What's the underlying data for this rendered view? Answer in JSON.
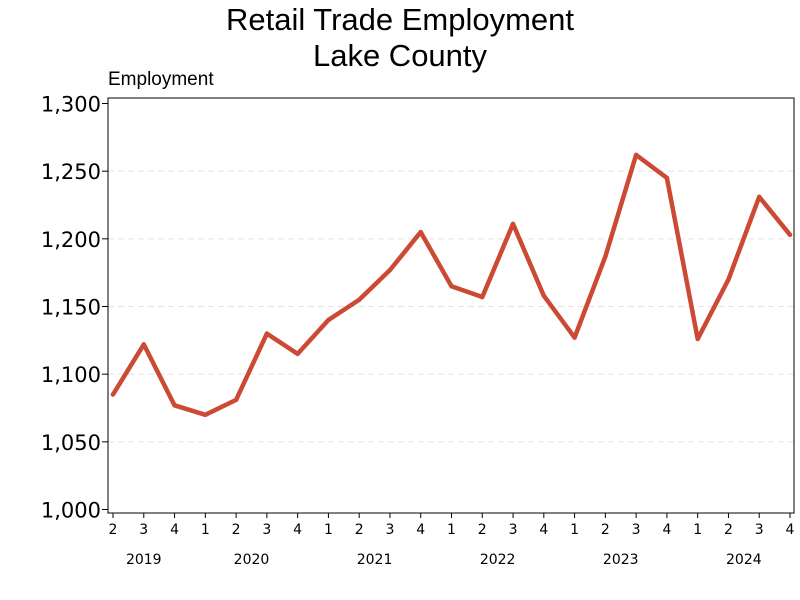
{
  "chart_data": {
    "type": "line",
    "title": [
      "Retail Trade Employment",
      "Lake County"
    ],
    "ylabel": "Employment",
    "xlabel": "",
    "ylim": [
      1000,
      1300
    ],
    "yticks": [
      1000,
      1050,
      1100,
      1150,
      1200,
      1250,
      1300
    ],
    "ytick_labels": [
      "1,000",
      "1,050",
      "1,100",
      "1,150",
      "1,200",
      "1,250",
      "1,300"
    ],
    "grid": "horizontal dashed",
    "legend": "none",
    "x_tick_labels": [
      "2",
      "3",
      "4",
      "1",
      "2",
      "3",
      "4",
      "1",
      "2",
      "3",
      "4",
      "1",
      "2",
      "3",
      "4",
      "1",
      "2",
      "3",
      "4",
      "1",
      "2",
      "3",
      "4"
    ],
    "year_labels": [
      {
        "label": "2019",
        "start": 0,
        "end": 2
      },
      {
        "label": "2020",
        "start": 3,
        "end": 6
      },
      {
        "label": "2021",
        "start": 7,
        "end": 10
      },
      {
        "label": "2022",
        "start": 11,
        "end": 14
      },
      {
        "label": "2023",
        "start": 15,
        "end": 18
      },
      {
        "label": "2024",
        "start": 19,
        "end": 22
      }
    ],
    "series": [
      {
        "color": "#cc4a33",
        "values": [
          1085,
          1122,
          1077,
          1070,
          1081,
          1130,
          1115,
          1140,
          1155,
          1177,
          1205,
          1165,
          1157,
          1211,
          1158,
          1127,
          1187,
          1262,
          1245,
          1126,
          1170,
          1231,
          1203
        ]
      }
    ]
  }
}
